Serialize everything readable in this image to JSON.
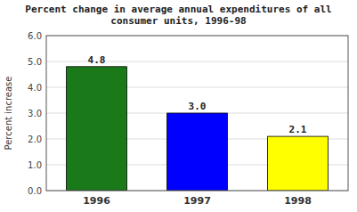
{
  "chart_data": {
    "type": "bar",
    "title": "Percent change in average annual expenditures of all\nconsumer units, 1996-98",
    "categories": [
      "1996",
      "1997",
      "1998"
    ],
    "values": [
      4.8,
      3.0,
      2.1
    ],
    "value_labels": [
      "4.8",
      "3.0",
      "2.1"
    ],
    "colors": [
      "#1a7a1a",
      "#0000FF",
      "#FFFF00"
    ],
    "y_label": "Percent increase",
    "ylim": [
      0.0,
      6.0
    ],
    "yticks": [
      {
        "value": 0.0,
        "label": "0.0"
      },
      {
        "value": 1.0,
        "label": "1.0"
      },
      {
        "value": 2.0,
        "label": "2.0"
      },
      {
        "value": 3.0,
        "label": "3.0"
      },
      {
        "value": 4.0,
        "label": "4.0"
      },
      {
        "value": 5.0,
        "label": "5.0"
      },
      {
        "value": 6.0,
        "label": "6.0"
      }
    ],
    "grid": true,
    "data_labels": true
  }
}
